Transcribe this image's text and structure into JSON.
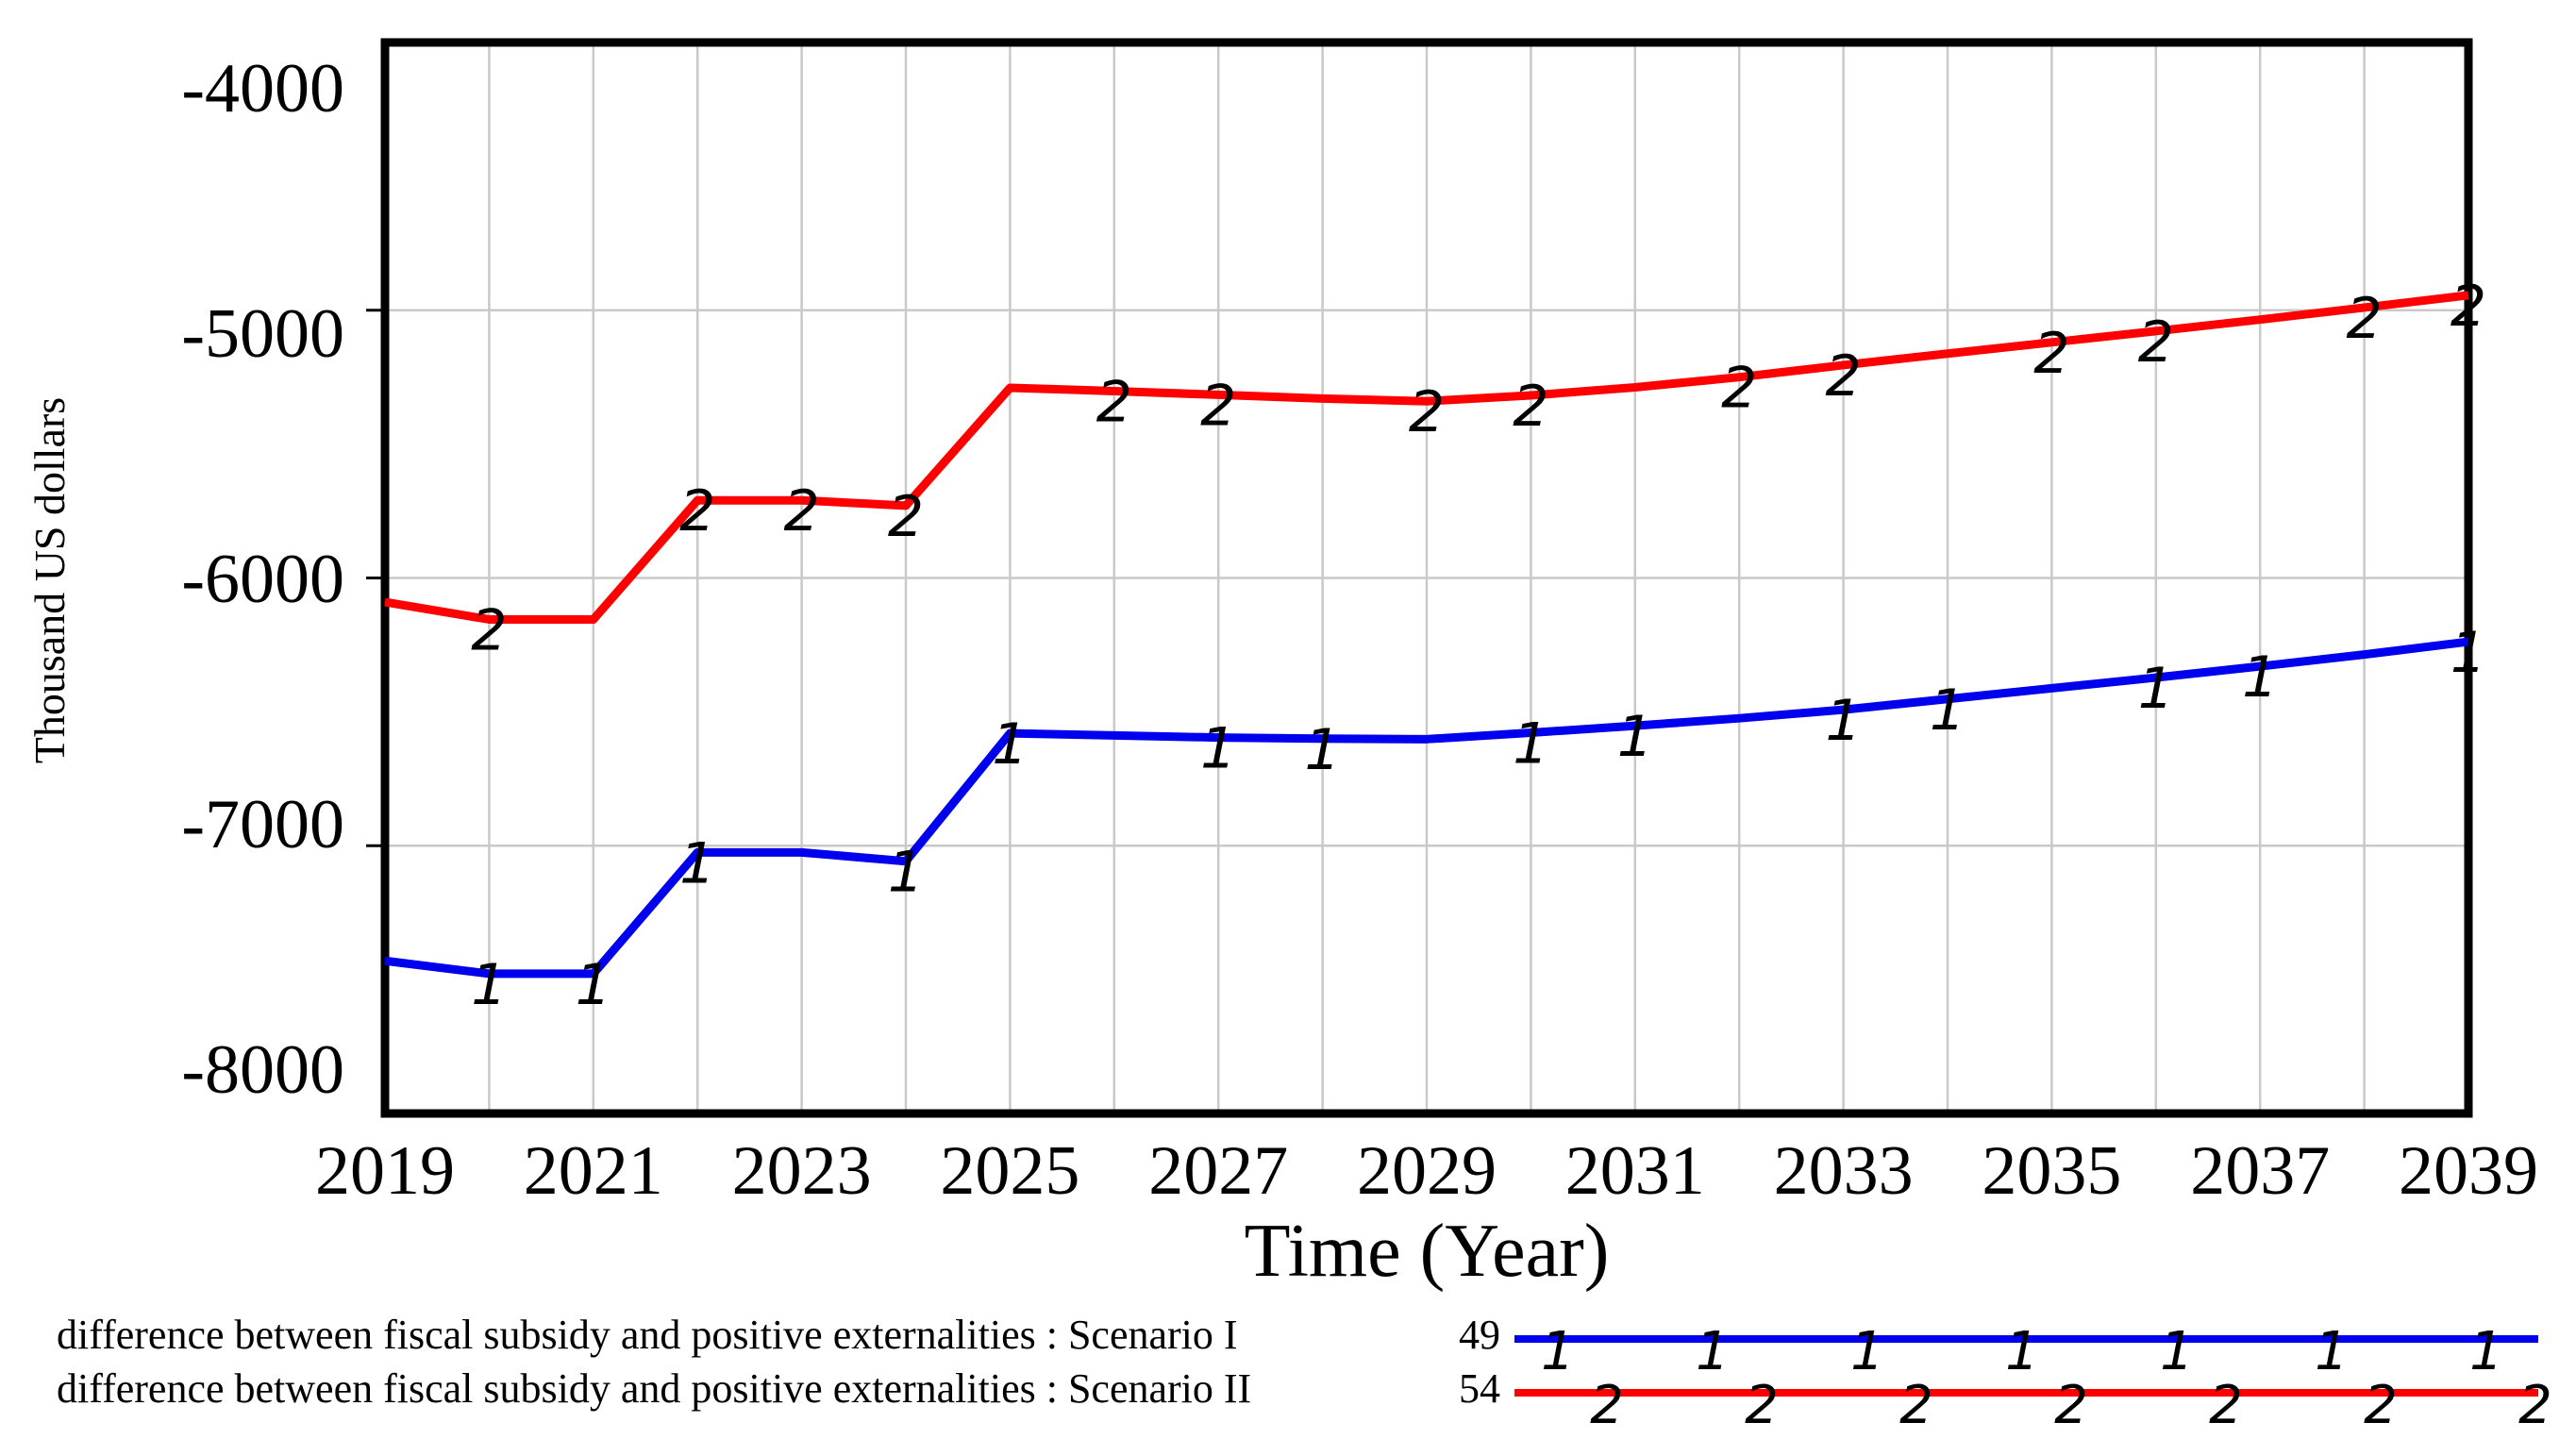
{
  "y_axis": {
    "title": "Thousand US dollars",
    "ticks": [
      "-4000",
      "-5000",
      "-6000",
      "-7000",
      "-8000"
    ]
  },
  "x_axis": {
    "title": "Time (Year)",
    "ticks": [
      "2019",
      "2021",
      "2023",
      "2025",
      "2027",
      "2029",
      "2031",
      "2033",
      "2035",
      "2037",
      "2039"
    ]
  },
  "colors": {
    "scenario1": "#0000ee",
    "scenario2": "#ff0000",
    "gridline": "#c9c9c9",
    "frame": "#000000"
  },
  "legend": [
    {
      "label": "difference between fiscal subsidy and positive externalities : Scenario I",
      "run": "49",
      "marker": "1",
      "color": "#0000ee"
    },
    {
      "label": "difference between fiscal subsidy and positive externalities : Scenario II",
      "run": "54",
      "marker": "2",
      "color": "#ff0000"
    }
  ],
  "chart_data": {
    "type": "line",
    "title": "",
    "xlabel": "Time (Year)",
    "ylabel": "Thousand US dollars",
    "xlim": [
      2019,
      2039
    ],
    "ylim": [
      -8000,
      -4000
    ],
    "grid": true,
    "x_gridline_step": 1,
    "y_gridline_step": 1000,
    "x": [
      2019,
      2020,
      2021,
      2022,
      2023,
      2024,
      2025,
      2026,
      2027,
      2028,
      2029,
      2030,
      2031,
      2032,
      2033,
      2034,
      2035,
      2036,
      2037,
      2038,
      2039
    ],
    "series": [
      {
        "name": "difference between fiscal subsidy and positive externalities : Scenario I",
        "run": "49",
        "marker": "1",
        "color": "#0000ee",
        "values": [
          -7430,
          -7478,
          -7478,
          -7025,
          -7025,
          -7058,
          -6580,
          -6588,
          -6596,
          -6600,
          -6602,
          -6578,
          -6552,
          -6524,
          -6492,
          -6452,
          -6412,
          -6372,
          -6330,
          -6286,
          -6238
        ],
        "marker_years": [
          2020,
          2021,
          2022,
          2024,
          2025,
          2027,
          2028,
          2030,
          2031,
          2033,
          2034,
          2036,
          2037,
          2039
        ]
      },
      {
        "name": "difference between fiscal subsidy and positive externalities : Scenario II",
        "run": "54",
        "marker": "2",
        "color": "#ff0000",
        "values": [
          -6090,
          -6155,
          -6155,
          -5710,
          -5710,
          -5730,
          -5290,
          -5302,
          -5316,
          -5330,
          -5340,
          -5318,
          -5288,
          -5250,
          -5205,
          -5162,
          -5120,
          -5078,
          -5035,
          -4990,
          -4944
        ],
        "marker_years": [
          2020,
          2022,
          2023,
          2024,
          2026,
          2027,
          2029,
          2030,
          2032,
          2033,
          2035,
          2036,
          2038,
          2039
        ]
      }
    ]
  }
}
